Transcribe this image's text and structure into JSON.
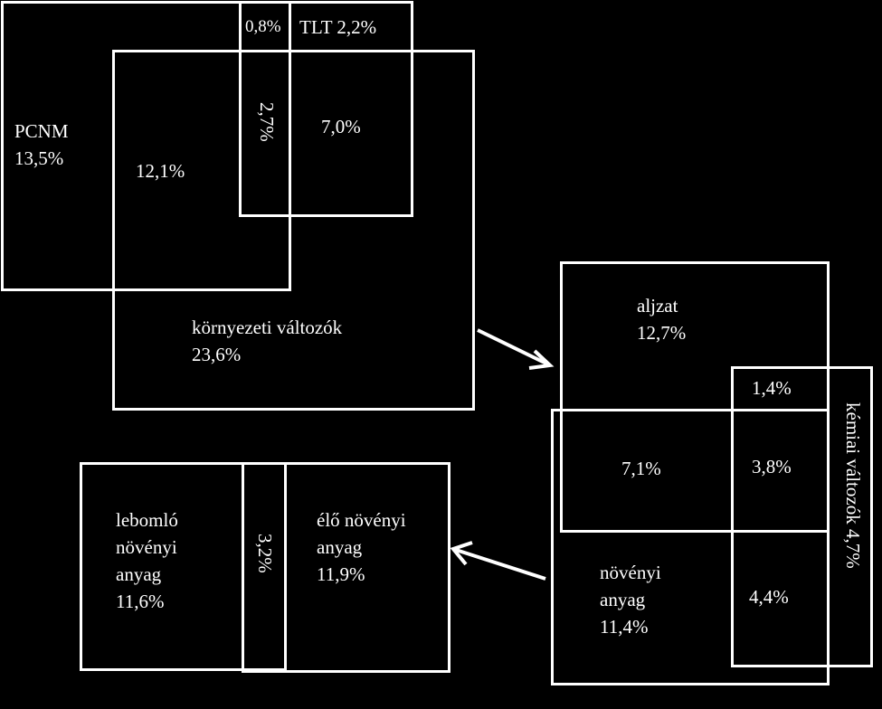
{
  "top_diagram": {
    "pcnm_name": "PCNM",
    "pcnm_value": "13,5%",
    "pcnm_env_overlap": "12,1%",
    "pcnm_tlt_overlap": "0,8%",
    "three_way_overlap": "2,7%",
    "tlt_label": "TLT  2,2%",
    "tlt_env_overlap": "7,0%",
    "env_name": "környezeti változók",
    "env_value": "23,6%"
  },
  "right_diagram": {
    "aljzat_name": "aljzat",
    "aljzat_value": "12,7%",
    "aljzat_kemiai_overlap": "1,4%",
    "aljzat_noveny_overlap": "7,1%",
    "three_way_overlap": "3,8%",
    "noveny_name_line1": "növényi",
    "noveny_name_line2": "anyag",
    "noveny_value": "11,4%",
    "noveny_kemiai_overlap": "4,4%",
    "kemiai_label": "kémiai változók 4,7%"
  },
  "bottom_diagram": {
    "lebomlo_line1": "lebomló",
    "lebomlo_line2": "növényi",
    "lebomlo_line3": "anyag",
    "lebomlo_value": "11,6%",
    "overlap": "3,2%",
    "elo_line1": "élő növényi",
    "elo_line2": "anyag",
    "elo_value": "11,9%"
  },
  "colors": {
    "background": "#000000",
    "foreground": "#ffffff"
  }
}
